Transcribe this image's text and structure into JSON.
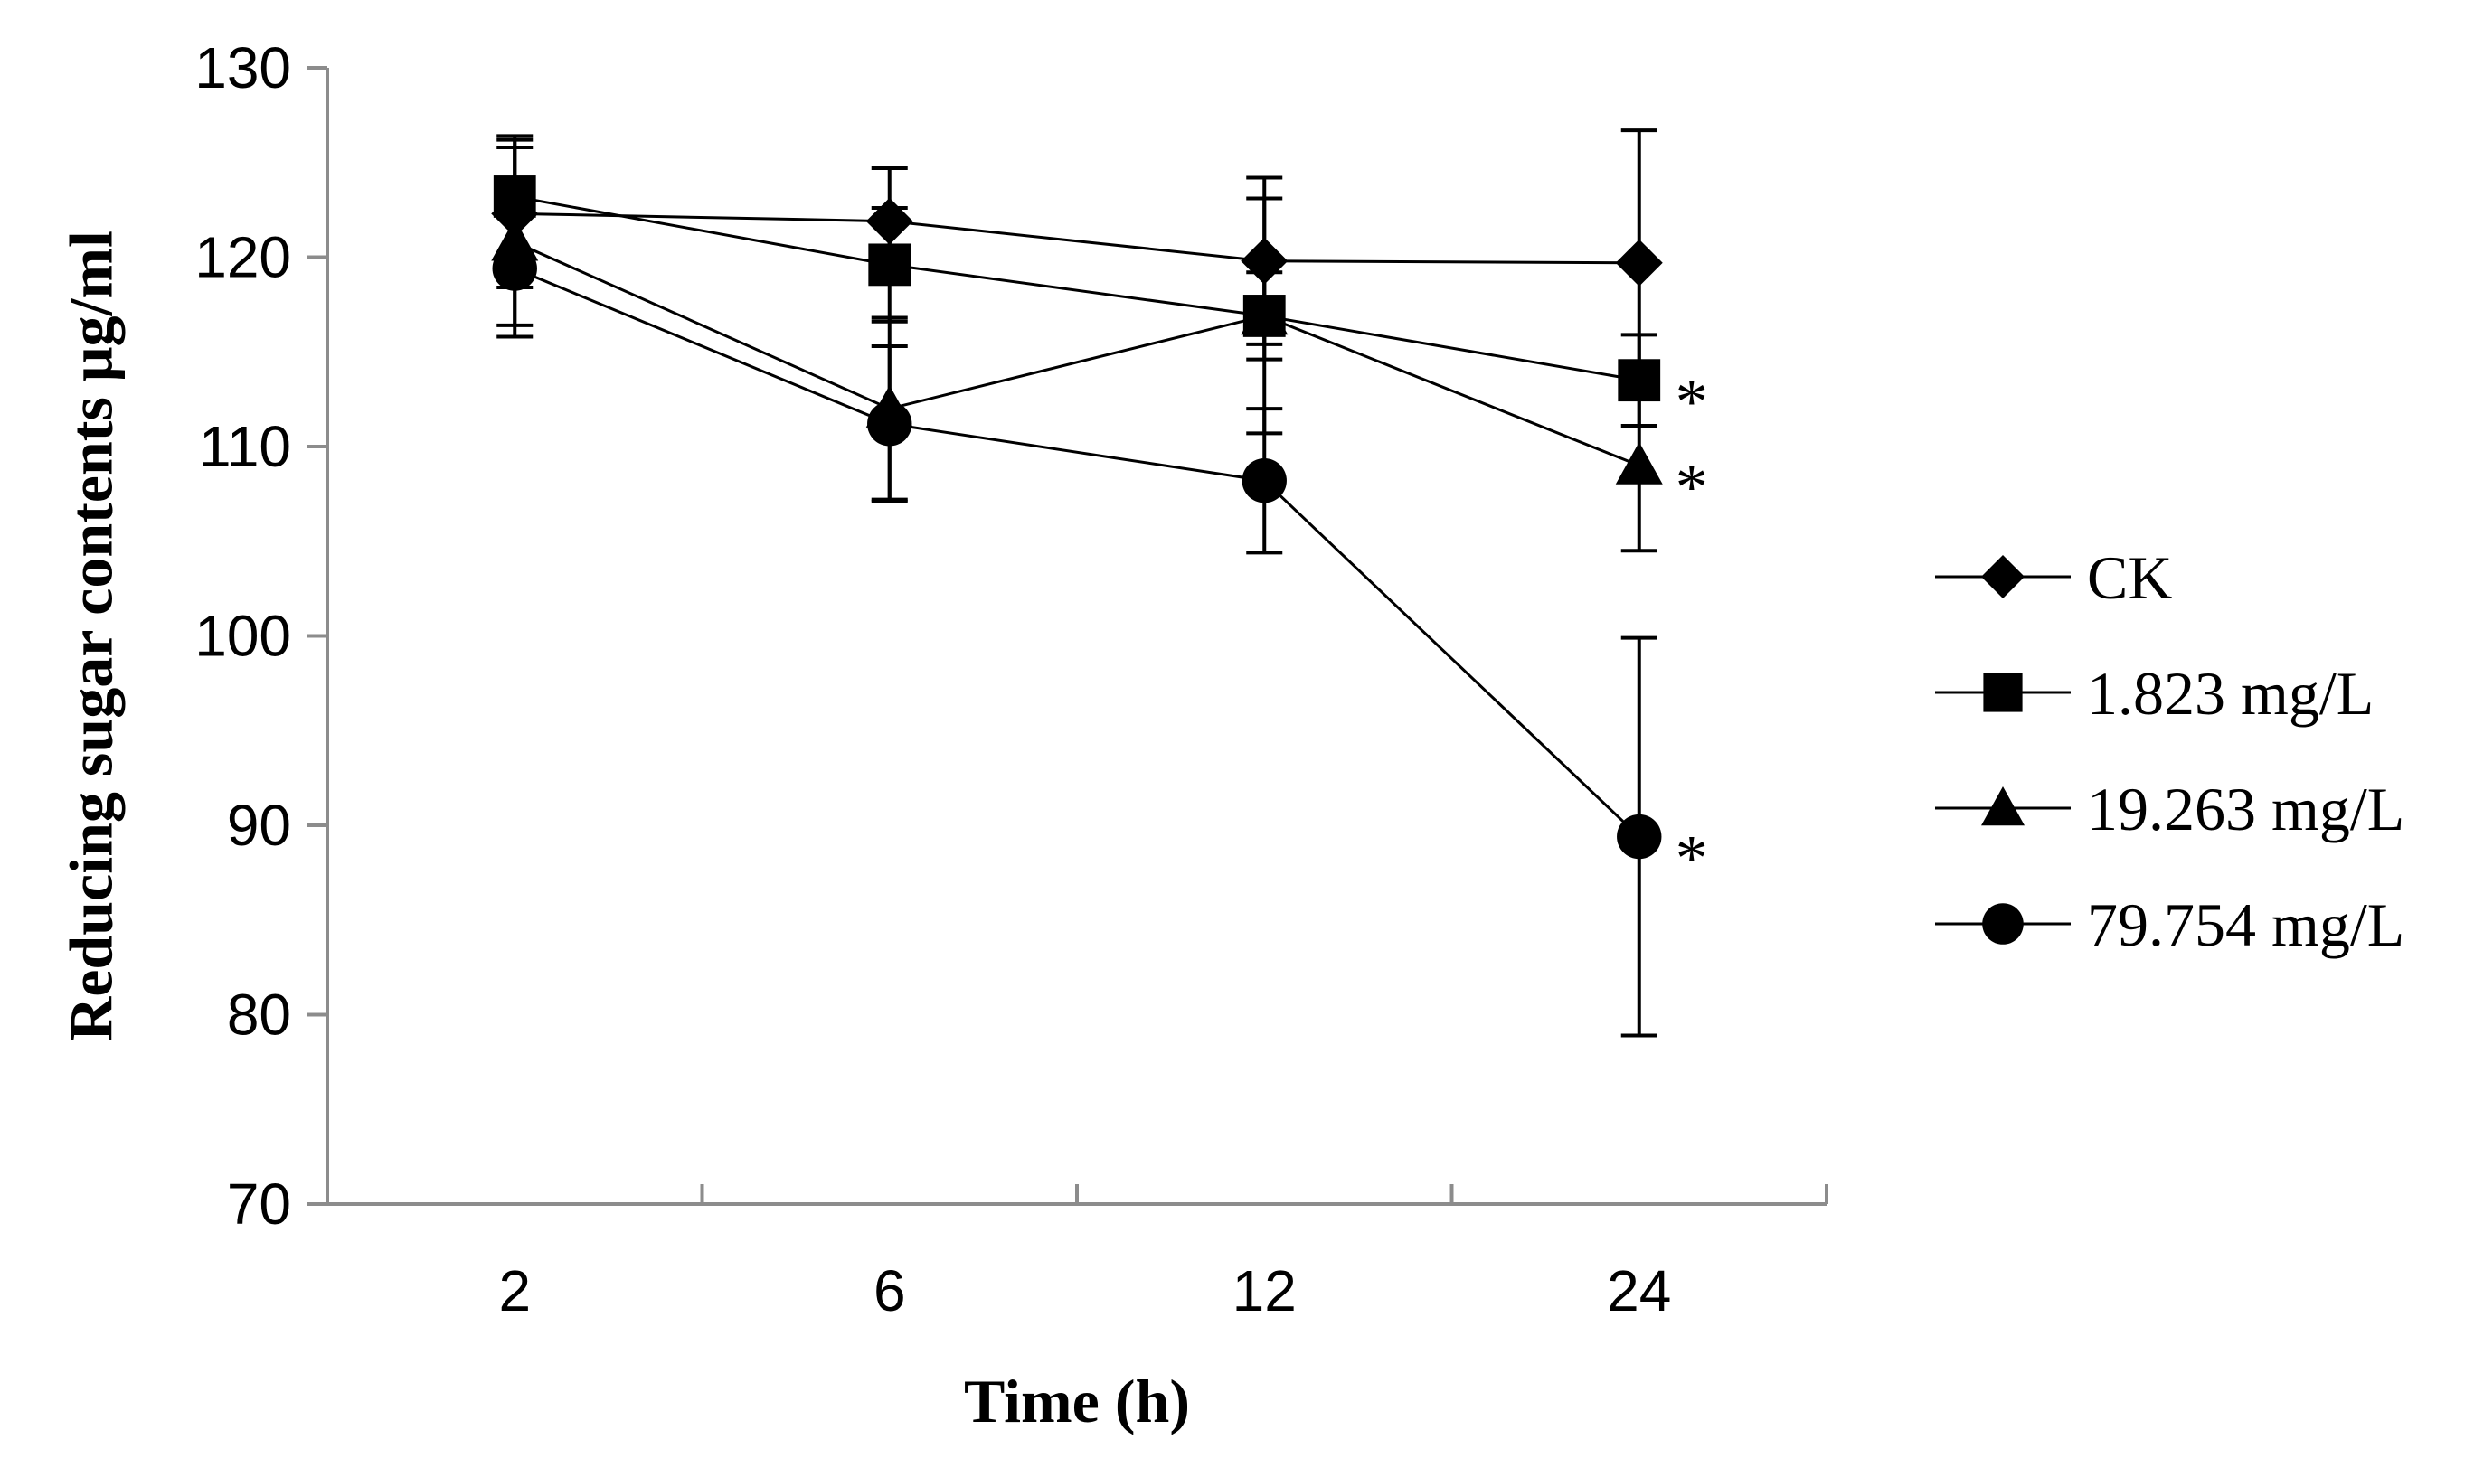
{
  "chart_data": {
    "type": "line",
    "title": "",
    "xlabel": "Time (h)",
    "ylabel": "Reducing sugar contents μg/ml",
    "categories": [
      "2",
      "6",
      "12",
      "24"
    ],
    "ylim": [
      70,
      130
    ],
    "yticks": [
      70,
      80,
      90,
      100,
      110,
      120,
      130
    ],
    "legend_position": "right",
    "series": [
      {
        "name": "CK",
        "marker": "diamond",
        "values": [
          122.3,
          121.9,
          119.8,
          119.7
        ],
        "errors": [
          3.9,
          2.8,
          4.4,
          7.0
        ],
        "sig": [
          "",
          "",
          "",
          ""
        ]
      },
      {
        "name": "1.823 mg/L",
        "marker": "square",
        "values": [
          123.2,
          119.6,
          116.9,
          113.5
        ],
        "errors": [
          3.2,
          3.0,
          2.3,
          2.4
        ],
        "sig": [
          "",
          "",
          "",
          "*"
        ]
      },
      {
        "name": "19.263 mg/L",
        "marker": "triangle",
        "values": [
          120.8,
          112.0,
          116.9,
          109.0
        ],
        "errors": [
          5.0,
          4.8,
          6.2,
          4.5
        ],
        "sig": [
          "",
          "",
          "",
          "*"
        ]
      },
      {
        "name": "79.754 mg/L",
        "marker": "circle",
        "values": [
          119.4,
          111.2,
          108.2,
          89.4
        ],
        "errors": [
          3.0,
          4.1,
          3.8,
          10.5
        ],
        "sig": [
          "",
          "",
          "",
          "*"
        ]
      }
    ]
  }
}
